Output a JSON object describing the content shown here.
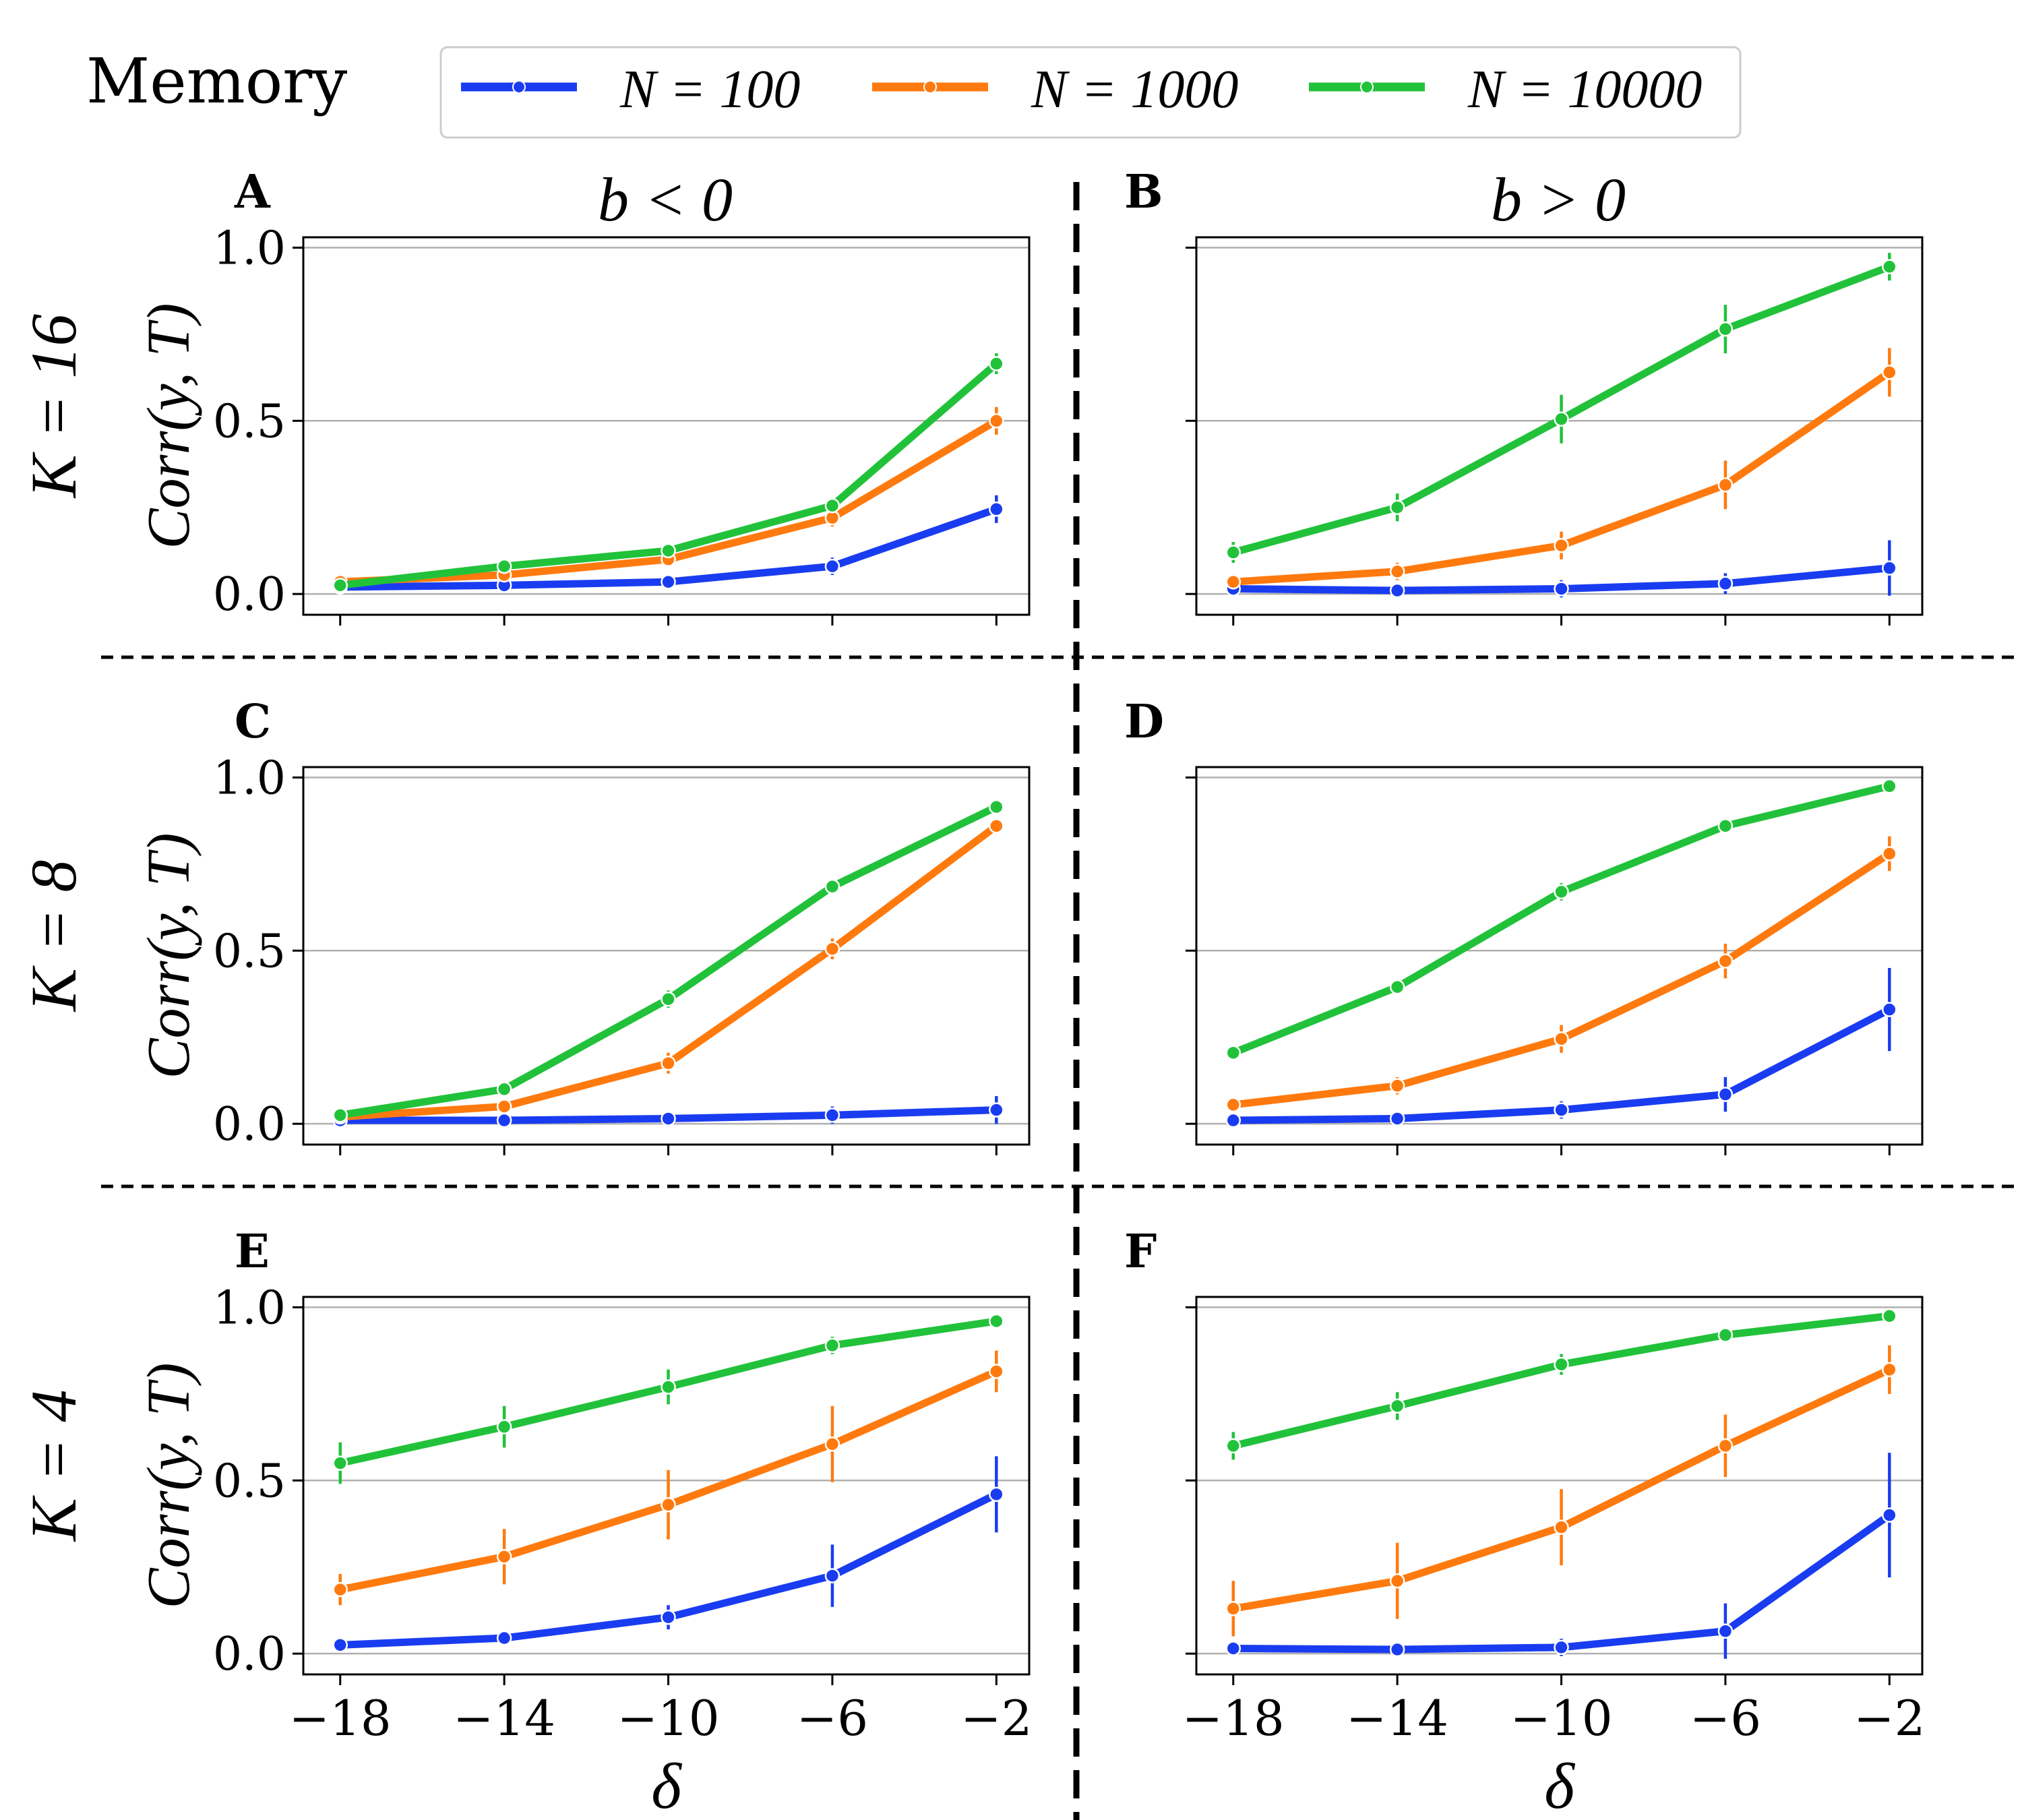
{
  "figure": {
    "title": "Memory",
    "column_titles": [
      "b < 0",
      "b > 0"
    ],
    "row_titles": [
      "K = 16",
      "K = 8",
      "K = 4"
    ],
    "ylabel": "Corr(y, T)",
    "xlabel": "δ"
  },
  "legend": [
    {
      "label": "N = 100",
      "color": "#1a3cf0"
    },
    {
      "label": "N = 1000",
      "color": "#ff7a0e"
    },
    {
      "label": "N = 10000",
      "color": "#21c23a"
    }
  ],
  "chart_data": [
    {
      "panel": "A",
      "type": "line",
      "row": "K = 16",
      "column": "b < 0",
      "x": [
        -18,
        -14,
        -10,
        -6,
        -2
      ],
      "xticklabels": [
        "−18",
        "−14",
        "−10",
        "−6",
        "−2"
      ],
      "yticks": [
        0.0,
        0.5,
        1.0
      ],
      "yticklabels": [
        "0.0",
        "0.5",
        "1.0"
      ],
      "ylim": [
        -0.06,
        1.03
      ],
      "xlim": [
        -18.9,
        -1.2
      ],
      "xlabel": "δ",
      "ylabel": "Corr(y, T)",
      "grid": "horizontal",
      "series": [
        {
          "name": "N = 100",
          "color": "#1a3cf0",
          "values": [
            0.02,
            0.025,
            0.035,
            0.08,
            0.245
          ],
          "errors": [
            0.01,
            0.01,
            0.015,
            0.025,
            0.04
          ]
        },
        {
          "name": "N = 1000",
          "color": "#ff7a0e",
          "values": [
            0.035,
            0.055,
            0.1,
            0.22,
            0.5
          ],
          "errors": [
            0.01,
            0.012,
            0.015,
            0.025,
            0.04
          ]
        },
        {
          "name": "N = 10000",
          "color": "#21c23a",
          "values": [
            0.025,
            0.08,
            0.125,
            0.255,
            0.665
          ],
          "errors": [
            0.01,
            0.01,
            0.015,
            0.02,
            0.03
          ]
        }
      ]
    },
    {
      "panel": "B",
      "type": "line",
      "row": "K = 16",
      "column": "b > 0",
      "x": [
        -18,
        -14,
        -10,
        -6,
        -2
      ],
      "xticklabels": [
        "−18",
        "−14",
        "−10",
        "−6",
        "−2"
      ],
      "yticks": [
        0.0,
        0.5,
        1.0
      ],
      "yticklabels": [
        "",
        "",
        ""
      ],
      "ylim": [
        -0.06,
        1.03
      ],
      "xlim": [
        -18.9,
        -1.2
      ],
      "xlabel": "δ",
      "ylabel": "",
      "grid": "horizontal",
      "series": [
        {
          "name": "N = 100",
          "color": "#1a3cf0",
          "values": [
            0.015,
            0.01,
            0.015,
            0.03,
            0.075
          ],
          "errors": [
            0.012,
            0.012,
            0.025,
            0.03,
            0.08
          ]
        },
        {
          "name": "N = 1000",
          "color": "#ff7a0e",
          "values": [
            0.035,
            0.065,
            0.14,
            0.315,
            0.64
          ],
          "errors": [
            0.015,
            0.025,
            0.04,
            0.07,
            0.07
          ]
        },
        {
          "name": "N = 10000",
          "color": "#21c23a",
          "values": [
            0.12,
            0.25,
            0.505,
            0.765,
            0.945
          ],
          "errors": [
            0.03,
            0.04,
            0.07,
            0.07,
            0.04
          ]
        }
      ]
    },
    {
      "panel": "C",
      "type": "line",
      "row": "K = 8",
      "column": "b < 0",
      "x": [
        -18,
        -14,
        -10,
        -6,
        -2
      ],
      "xticklabels": [
        "−18",
        "−14",
        "−10",
        "−6",
        "−2"
      ],
      "yticks": [
        0.0,
        0.5,
        1.0
      ],
      "yticklabels": [
        "0.0",
        "0.5",
        "1.0"
      ],
      "ylim": [
        -0.06,
        1.03
      ],
      "xlim": [
        -18.9,
        -1.2
      ],
      "xlabel": "δ",
      "ylabel": "Corr(y, T)",
      "grid": "horizontal",
      "series": [
        {
          "name": "N = 100",
          "color": "#1a3cf0",
          "values": [
            0.01,
            0.01,
            0.015,
            0.025,
            0.04
          ],
          "errors": [
            0.012,
            0.015,
            0.02,
            0.025,
            0.04
          ]
        },
        {
          "name": "N = 1000",
          "color": "#ff7a0e",
          "values": [
            0.02,
            0.05,
            0.175,
            0.505,
            0.86
          ],
          "errors": [
            0.01,
            0.01,
            0.03,
            0.03,
            0.015
          ]
        },
        {
          "name": "N = 10000",
          "color": "#21c23a",
          "values": [
            0.025,
            0.1,
            0.36,
            0.685,
            0.915
          ],
          "errors": [
            0.01,
            0.01,
            0.025,
            0.015,
            0.01
          ]
        }
      ]
    },
    {
      "panel": "D",
      "type": "line",
      "row": "K = 8",
      "column": "b > 0",
      "x": [
        -18,
        -14,
        -10,
        -6,
        -2
      ],
      "xticklabels": [
        "−18",
        "−14",
        "−10",
        "−6",
        "−2"
      ],
      "yticks": [
        0.0,
        0.5,
        1.0
      ],
      "yticklabels": [
        "",
        "",
        ""
      ],
      "ylim": [
        -0.06,
        1.03
      ],
      "xlim": [
        -18.9,
        -1.2
      ],
      "xlabel": "δ",
      "ylabel": "",
      "grid": "horizontal",
      "series": [
        {
          "name": "N = 100",
          "color": "#1a3cf0",
          "values": [
            0.01,
            0.015,
            0.04,
            0.085,
            0.33
          ],
          "errors": [
            0.01,
            0.015,
            0.025,
            0.05,
            0.12
          ]
        },
        {
          "name": "N = 1000",
          "color": "#ff7a0e",
          "values": [
            0.055,
            0.11,
            0.245,
            0.47,
            0.78
          ],
          "errors": [
            0.02,
            0.025,
            0.04,
            0.05,
            0.05
          ]
        },
        {
          "name": "N = 10000",
          "color": "#21c23a",
          "values": [
            0.205,
            0.395,
            0.67,
            0.86,
            0.975
          ],
          "errors": [
            0.02,
            0.02,
            0.025,
            0.015,
            0.008
          ]
        }
      ]
    },
    {
      "panel": "E",
      "type": "line",
      "row": "K = 4",
      "column": "b < 0",
      "x": [
        -18,
        -14,
        -10,
        -6,
        -2
      ],
      "xticklabels": [
        "−18",
        "−14",
        "−10",
        "−6",
        "−2"
      ],
      "yticks": [
        0.0,
        0.5,
        1.0
      ],
      "yticklabels": [
        "0.0",
        "0.5",
        "1.0"
      ],
      "ylim": [
        -0.06,
        1.03
      ],
      "xlim": [
        -18.9,
        -1.2
      ],
      "xlabel": "δ",
      "ylabel": "Corr(y, T)",
      "grid": "horizontal",
      "series": [
        {
          "name": "N = 100",
          "color": "#1a3cf0",
          "values": [
            0.025,
            0.045,
            0.105,
            0.225,
            0.46
          ],
          "errors": [
            0.015,
            0.02,
            0.035,
            0.09,
            0.11
          ]
        },
        {
          "name": "N = 1000",
          "color": "#ff7a0e",
          "values": [
            0.185,
            0.28,
            0.43,
            0.605,
            0.815
          ],
          "errors": [
            0.045,
            0.08,
            0.1,
            0.11,
            0.06
          ]
        },
        {
          "name": "N = 10000",
          "color": "#21c23a",
          "values": [
            0.55,
            0.655,
            0.77,
            0.89,
            0.96
          ],
          "errors": [
            0.06,
            0.06,
            0.05,
            0.025,
            0.01
          ]
        }
      ]
    },
    {
      "panel": "F",
      "type": "line",
      "row": "K = 4",
      "column": "b > 0",
      "x": [
        -18,
        -14,
        -10,
        -6,
        -2
      ],
      "xticklabels": [
        "−18",
        "−14",
        "−10",
        "−6",
        "−2"
      ],
      "yticks": [
        0.0,
        0.5,
        1.0
      ],
      "yticklabels": [
        "",
        "",
        ""
      ],
      "ylim": [
        -0.06,
        1.03
      ],
      "xlim": [
        -18.9,
        -1.2
      ],
      "xlabel": "δ",
      "ylabel": "",
      "grid": "horizontal",
      "series": [
        {
          "name": "N = 100",
          "color": "#1a3cf0",
          "values": [
            0.015,
            0.012,
            0.018,
            0.065,
            0.4
          ],
          "errors": [
            0.015,
            0.015,
            0.025,
            0.08,
            0.18
          ]
        },
        {
          "name": "N = 1000",
          "color": "#ff7a0e",
          "values": [
            0.13,
            0.21,
            0.365,
            0.6,
            0.82
          ],
          "errors": [
            0.08,
            0.11,
            0.11,
            0.09,
            0.07
          ]
        },
        {
          "name": "N = 10000",
          "color": "#21c23a",
          "values": [
            0.6,
            0.715,
            0.835,
            0.92,
            0.975
          ],
          "errors": [
            0.04,
            0.04,
            0.03,
            0.02,
            0.008
          ]
        }
      ]
    }
  ]
}
